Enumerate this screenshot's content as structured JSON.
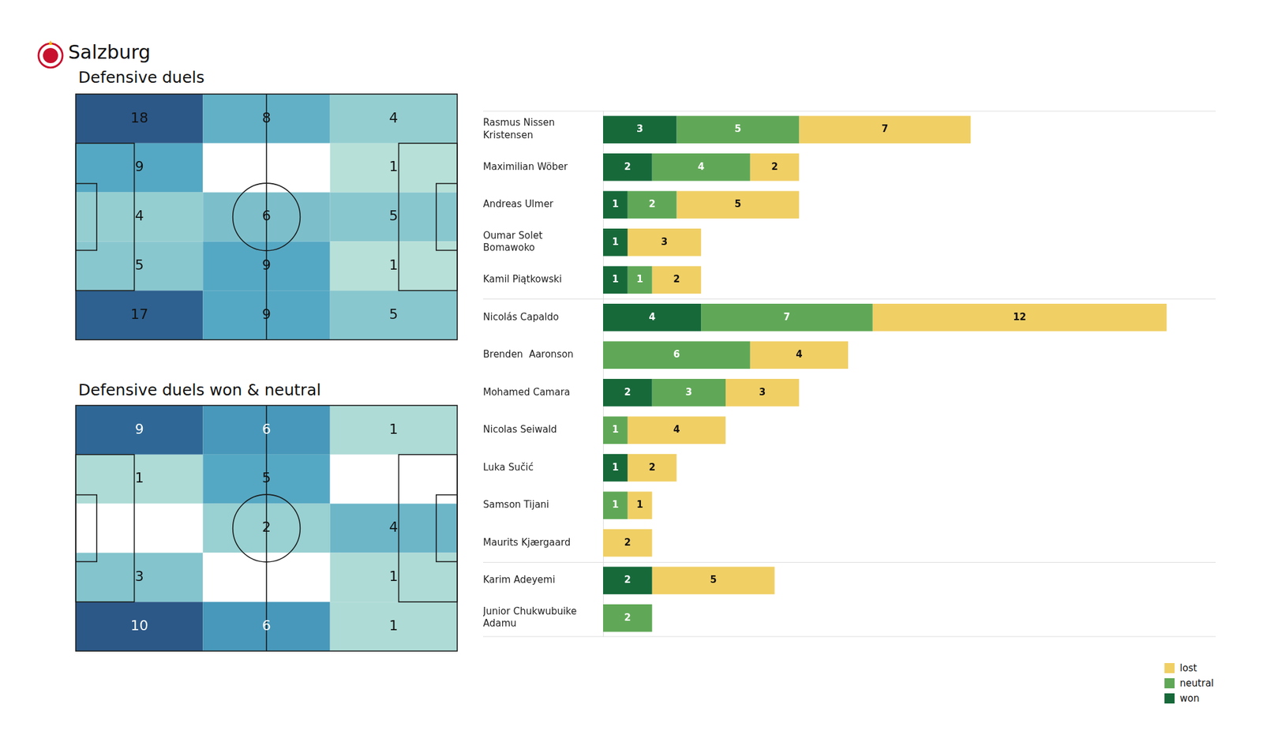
{
  "header": {
    "title": "Salzburg"
  },
  "chart_data": [
    {
      "type": "heatmap",
      "title": "Defensive duels",
      "cells": [
        [
          18,
          8,
          4
        ],
        [
          9,
          null,
          1
        ],
        [
          4,
          6,
          5
        ],
        [
          5,
          9,
          1
        ],
        [
          17,
          9,
          5
        ]
      ],
      "data_labels": true,
      "tick_labels": false
    },
    {
      "type": "heatmap",
      "title": "Defensive duels won & neutral",
      "cells": [
        [
          9,
          6,
          1
        ],
        [
          1,
          5,
          null
        ],
        [
          null,
          2,
          4
        ],
        [
          3,
          null,
          1
        ],
        [
          10,
          6,
          1
        ]
      ],
      "data_labels": true,
      "tick_labels": false
    },
    {
      "type": "bar",
      "orientation": "horizontal",
      "stacked": true,
      "data_labels": true,
      "tick_labels": "y",
      "legend": "lower right",
      "grid": false,
      "xlim": [
        0,
        25
      ],
      "categories": [
        "Rasmus Nissen Kristensen",
        "Maximilian Wöber",
        "Andreas Ulmer",
        "Oumar Solet Bomawoko",
        "Kamil Piątkowski",
        "Nicolás Capaldo",
        "Brenden  Aaronson",
        "Mohamed Camara",
        "Nicolas Seiwald",
        "Luka Sučić",
        "Samson Tijani",
        "Maurits Kjærgaard",
        "Karim Adeyemi",
        "Junior Chukwubuike Adamu"
      ],
      "series": [
        {
          "name": "won",
          "color": "#17693a",
          "values": [
            3,
            2,
            1,
            1,
            1,
            4,
            null,
            2,
            null,
            1,
            null,
            null,
            2,
            null
          ]
        },
        {
          "name": "neutral",
          "color": "#60a857",
          "values": [
            5,
            4,
            2,
            null,
            1,
            7,
            6,
            3,
            1,
            null,
            1,
            null,
            null,
            2
          ]
        },
        {
          "name": "lost",
          "color": "#f0cf65",
          "values": [
            7,
            2,
            5,
            3,
            2,
            12,
            4,
            3,
            4,
            2,
            1,
            2,
            5,
            null
          ]
        }
      ]
    }
  ]
}
